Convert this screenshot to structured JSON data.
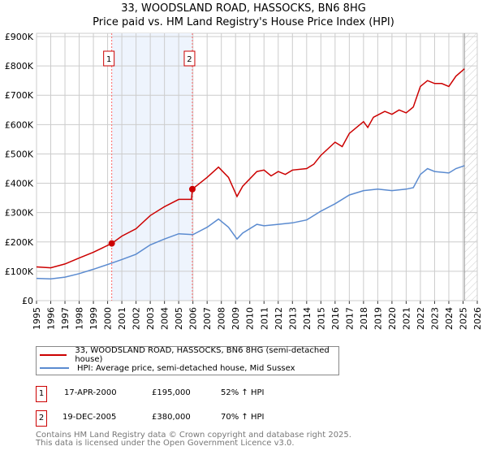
{
  "title_line1": "33, WOODSLAND ROAD, HASSOCKS, BN6 8HG",
  "title_line2": "Price paid vs. HM Land Registry's House Price Index (HPI)",
  "colors": {
    "property": "#cc0000",
    "hpi": "#5b8bd0",
    "shade": "#eef4fd"
  },
  "chart_data": {
    "type": "line",
    "title": "Price paid vs. HM Land Registry's House Price Index (HPI)",
    "xlim": [
      1995,
      2026
    ],
    "ylim": [
      0,
      900000
    ],
    "x_ticks": [
      "1995",
      "1996",
      "1997",
      "1998",
      "1999",
      "2000",
      "2001",
      "2002",
      "2003",
      "2004",
      "2005",
      "2006",
      "2007",
      "2008",
      "2009",
      "2010",
      "2011",
      "2012",
      "2013",
      "2014",
      "2015",
      "2016",
      "2017",
      "2018",
      "2019",
      "2020",
      "2021",
      "2022",
      "2023",
      "2024",
      "2025",
      "2026"
    ],
    "y_ticks": [
      {
        "v": 0,
        "label": "£0"
      },
      {
        "v": 100000,
        "label": "£100K"
      },
      {
        "v": 200000,
        "label": "£200K"
      },
      {
        "v": 300000,
        "label": "£300K"
      },
      {
        "v": 400000,
        "label": "£400K"
      },
      {
        "v": 500000,
        "label": "£500K"
      },
      {
        "v": 600000,
        "label": "£600K"
      },
      {
        "v": 700000,
        "label": "£700K"
      },
      {
        "v": 800000,
        "label": "£800K"
      },
      {
        "v": 900000,
        "label": "£900K"
      }
    ],
    "grid": true,
    "forecast_hatch_from": 2025.1,
    "series": [
      {
        "name": "33, WOODSLAND ROAD, HASSOCKS, BN6 8HG (semi-detached house)",
        "color": "#cc0000",
        "x": [
          1995,
          1996,
          1997,
          1998,
          1999,
          2000.29,
          2001,
          2002,
          2003,
          2004,
          2005,
          2005.9,
          2005.96,
          2007,
          2007.8,
          2008.5,
          2009.1,
          2009.5,
          2010.5,
          2011,
          2011.5,
          2012,
          2012.5,
          2013,
          2014,
          2014.5,
          2015,
          2016,
          2016.5,
          2017,
          2018,
          2018.3,
          2018.7,
          2019.5,
          2020,
          2020.5,
          2021,
          2021.5,
          2022,
          2022.5,
          2023,
          2023.5,
          2024,
          2024.5,
          2025.1
        ],
        "y": [
          115000,
          112000,
          125000,
          145000,
          165000,
          195000,
          220000,
          245000,
          290000,
          320000,
          345000,
          345000,
          380000,
          420000,
          455000,
          420000,
          355000,
          390000,
          440000,
          445000,
          425000,
          440000,
          430000,
          445000,
          450000,
          465000,
          495000,
          540000,
          525000,
          570000,
          610000,
          590000,
          625000,
          645000,
          635000,
          650000,
          640000,
          660000,
          730000,
          750000,
          740000,
          740000,
          730000,
          765000,
          790000
        ]
      },
      {
        "name": "HPI: Average price, semi-detached house, Mid Sussex",
        "color": "#5b8bd0",
        "x": [
          1995,
          1996,
          1997,
          1998,
          1999,
          2000.29,
          2001,
          2002,
          2003,
          2004,
          2005,
          2006,
          2007,
          2007.8,
          2008.5,
          2009.1,
          2009.5,
          2010.5,
          2011,
          2012,
          2013,
          2014,
          2015,
          2016,
          2017,
          2018,
          2019,
          2020,
          2021,
          2021.5,
          2022,
          2022.5,
          2023,
          2024,
          2024.5,
          2025.1
        ],
        "y": [
          76000,
          74000,
          80000,
          92000,
          107000,
          128000,
          140000,
          158000,
          190000,
          210000,
          228000,
          225000,
          250000,
          278000,
          250000,
          210000,
          230000,
          260000,
          255000,
          260000,
          265000,
          275000,
          305000,
          330000,
          360000,
          375000,
          380000,
          375000,
          380000,
          385000,
          430000,
          450000,
          440000,
          435000,
          450000,
          460000
        ]
      }
    ],
    "sales": [
      {
        "label": "1",
        "x": 2000.29,
        "price": 195000,
        "date": "17-APR-2000",
        "price_text": "£195,000",
        "hpi_text": "52% ↑ HPI"
      },
      {
        "label": "2",
        "x": 2005.96,
        "price": 380000,
        "date": "19-DEC-2005",
        "price_text": "£380,000",
        "hpi_text": "70% ↑ HPI"
      }
    ],
    "legend": [
      "33, WOODSLAND ROAD, HASSOCKS, BN6 8HG (semi-detached house)",
      "HPI: Average price, semi-detached house, Mid Sussex"
    ]
  },
  "footer_line1": "Contains HM Land Registry data © Crown copyright and database right 2025.",
  "footer_line2": "This data is licensed under the Open Government Licence v3.0."
}
